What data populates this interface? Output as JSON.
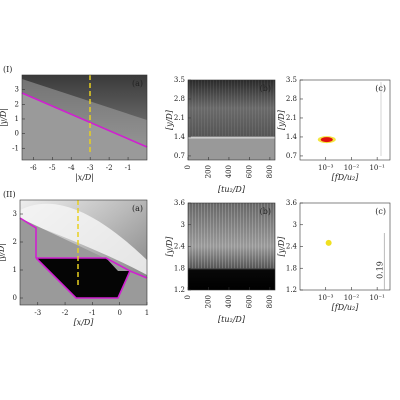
{
  "chart_data": [
    {
      "type": "image",
      "row_label": "(I)",
      "panel_label": "(a)",
      "x_label": "|x/D|",
      "y_label": "|y/D|",
      "xlim": [
        -6.6,
        0
      ],
      "ylim": [
        -1.8,
        4
      ],
      "xticks": [
        -6,
        -5,
        -4,
        -3,
        -2,
        -1
      ],
      "yticks": [
        -1,
        0,
        1,
        2,
        3
      ]
    },
    {
      "type": "image",
      "panel_label": "(b)",
      "x_label": "[tu₂/D]",
      "y_label": "[y/D]",
      "xlim": [
        0,
        850
      ],
      "ylim": [
        0.55,
        3.5
      ],
      "xticks": [
        0,
        200,
        400,
        600,
        800
      ],
      "yticks": [
        0.7,
        1.4,
        2.1,
        2.8,
        3.5
      ]
    },
    {
      "type": "scatter",
      "panel_label": "(c)",
      "x_label": "[fD/u₂]",
      "y_label": "[y/D]",
      "log_x": true,
      "xlim": [
        0.0001,
        0.316
      ],
      "ylim": [
        0.55,
        3.5
      ],
      "xticks": [
        {
          "value": 0.001,
          "label": "10⁻³"
        },
        {
          "value": 0.01,
          "label": "10⁻²"
        },
        {
          "value": 0.1,
          "label": "10⁻¹"
        }
      ],
      "yticks": [
        0.7,
        1.4,
        2.1,
        2.8,
        3.5
      ],
      "series": [
        {
          "color": "#e01010",
          "x": [
            0.0011
          ],
          "values": [
            1.3
          ]
        }
      ]
    },
    {
      "type": "image",
      "row_label": "(II)",
      "panel_label": "(a)",
      "x_label": "[x/D]",
      "y_label": "|y/D|",
      "xlim": [
        -3.65,
        1
      ],
      "ylim": [
        -0.25,
        3.5
      ],
      "xticks": [
        -3,
        -2,
        -1,
        0,
        1
      ],
      "yticks": [
        0,
        1,
        2,
        3
      ]
    },
    {
      "type": "image",
      "panel_label": "(b)",
      "x_label": "[tu₂/D]",
      "y_label": "[y/D]",
      "xlim": [
        0,
        850
      ],
      "ylim": [
        1.2,
        3.6
      ],
      "xticks": [
        0,
        200,
        400,
        600,
        800
      ],
      "yticks": [
        1.2,
        1.8,
        2.4,
        3,
        3.6
      ]
    },
    {
      "type": "scatter",
      "panel_label": "(c)",
      "x_label": "[fD/u₂]",
      "y_label": "[y/D]",
      "log_x": true,
      "xlim": [
        0.0001,
        0.316
      ],
      "ylim": [
        1.2,
        3.6
      ],
      "xticks": [
        {
          "value": 0.001,
          "label": "10⁻³"
        },
        {
          "value": 0.01,
          "label": "10⁻²"
        },
        {
          "value": 0.1,
          "label": "10⁻¹"
        }
      ],
      "yticks": [
        1.2,
        1.8,
        2.4,
        3,
        3.6
      ],
      "series": [
        {
          "color": "#f0e020",
          "x": [
            0.0013
          ],
          "values": [
            2.5
          ]
        }
      ],
      "vline": 0.19
    }
  ]
}
